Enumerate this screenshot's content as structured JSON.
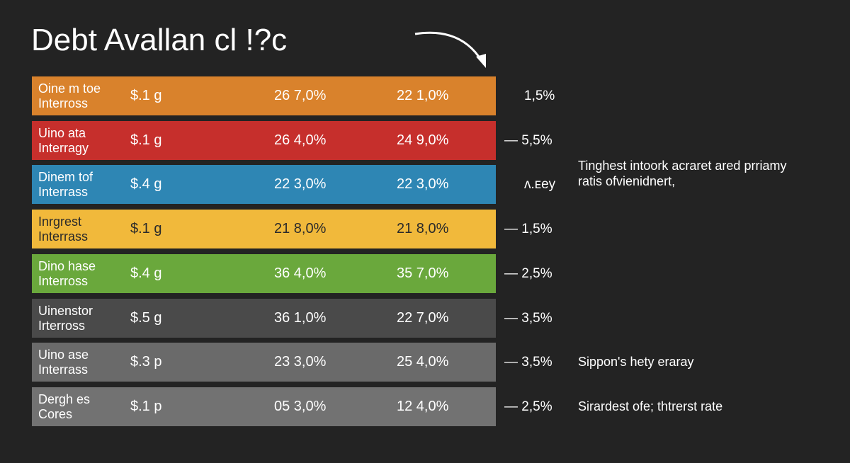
{
  "header": {
    "title": "Debt Avallan cl !?c"
  },
  "rows": [
    {
      "name": [
        "Oine m toe",
        "Interross"
      ],
      "amount": "$.1 g",
      "rate_a": "26 7,0%",
      "rate_b": "22 1,0%",
      "side": "1,5%",
      "color": "#d9822c",
      "text_color": "#ffffff"
    },
    {
      "name": [
        "Uino ata",
        "Interragy"
      ],
      "amount": "$.1 g",
      "rate_a": "26 4,0%",
      "rate_b": "24 9,0%",
      "side": "— 5,5%",
      "color": "#c62f2c",
      "text_color": "#ffffff"
    },
    {
      "name": [
        "Dinem tof",
        "Interrass"
      ],
      "amount": "$.4 g",
      "rate_a": "22 3,0%",
      "rate_b": "22 3,0%",
      "side": "ᴧ.ᴇey",
      "color": "#2e86b4",
      "text_color": "#ffffff"
    },
    {
      "name": [
        "Inrgrest",
        "Interrass"
      ],
      "amount": "$.1 g",
      "rate_a": "21 8,0%",
      "rate_b": "21 8,0%",
      "side": "— 1,5%",
      "color": "#f1b93b",
      "text_color": "#2a2a2a"
    },
    {
      "name": [
        "Dino hase",
        "Interross"
      ],
      "amount": "$.4 g",
      "rate_a": "36 4,0%",
      "rate_b": "35 7,0%",
      "side": "— 2,5%",
      "color": "#6aa83c",
      "text_color": "#ffffff"
    },
    {
      "name": [
        "Uinenstor",
        "Irterross"
      ],
      "amount": "$.5 g",
      "rate_a": "36 1,0%",
      "rate_b": "22 7,0%",
      "side": "— 3,5%",
      "color": "#4a4a4a",
      "text_color": "#ffffff"
    },
    {
      "name": [
        "Uino ase",
        "Interrass"
      ],
      "amount": "$.3 p",
      "rate_a": "23 3,0%",
      "rate_b": "25 4,0%",
      "side": "— 3,5%",
      "color": "#6a6a6a",
      "text_color": "#ffffff"
    },
    {
      "name": [
        "Dergh es",
        "Cores"
      ],
      "amount": "$.1 p",
      "rate_a": "05 3,0%",
      "rate_b": "12 4,0%",
      "side": "— 2,5%",
      "color": "#727272",
      "text_color": "#ffffff"
    }
  ],
  "notes": [
    {
      "row": 2,
      "lines": [
        "Tinghest intoork acraret ared prriamy",
        "ratis ofvienidnert,"
      ]
    },
    {
      "row": 6,
      "lines": [
        "Sippon's hety eraray"
      ]
    },
    {
      "row": 7,
      "lines": [
        "Sirardest ofe; thtrerst rate"
      ]
    }
  ]
}
